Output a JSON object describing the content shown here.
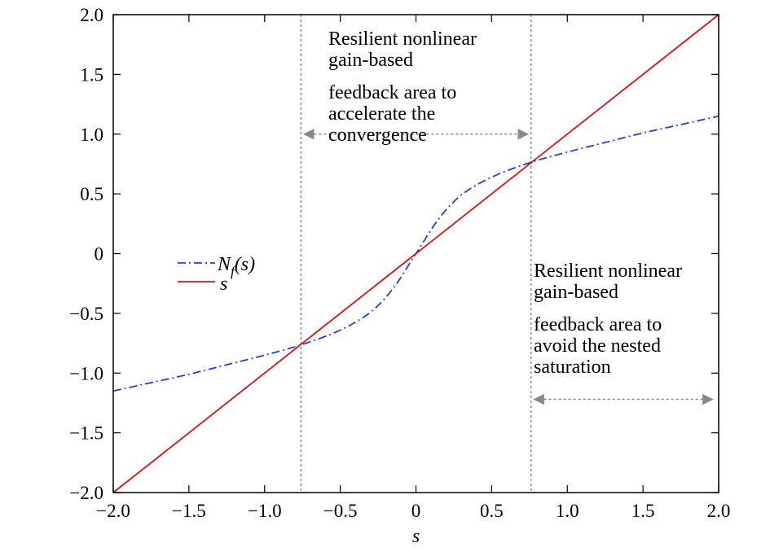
{
  "chart_data": {
    "type": "line",
    "xlabel": "s",
    "xlim": [
      -2.0,
      2.0
    ],
    "ylim": [
      -2.0,
      2.0
    ],
    "x_ticks": [
      "−2.0",
      "−1.5",
      "−1.0",
      "−0.5",
      "0",
      "0.5",
      "1.0",
      "1.5",
      "2.0"
    ],
    "y_ticks": [
      "2.0",
      "1.5",
      "1.0",
      "0.5",
      "0",
      "−0.5",
      "−1.0",
      "−1.5",
      "−2.0"
    ],
    "grid": false,
    "legend_position": "center-left",
    "series": [
      {
        "name_parts": {
          "main": "N",
          "sub": "f",
          "rest": "(s)"
        },
        "color": "#1f3fe0",
        "style": "dash-dot",
        "x": [
          -2.0,
          -1.75,
          -1.5,
          -1.25,
          -1.0,
          -0.75,
          -0.5,
          -0.3,
          -0.15,
          0.0,
          0.15,
          0.3,
          0.5,
          0.75,
          1.0,
          1.25,
          1.5,
          1.75,
          2.0
        ],
        "y": [
          -1.15,
          -1.08,
          -1.01,
          -0.93,
          -0.85,
          -0.76,
          -0.64,
          -0.49,
          -0.29,
          0.0,
          0.29,
          0.49,
          0.64,
          0.76,
          0.85,
          0.93,
          1.01,
          1.08,
          1.15
        ]
      },
      {
        "name": "s",
        "color": "#e01010",
        "style": "solid",
        "x": [
          -2.0,
          2.0
        ],
        "y": [
          -2.0,
          2.0
        ]
      }
    ],
    "vertical_lines": [
      {
        "x": -0.76,
        "color": "#888888",
        "style": "dotted"
      },
      {
        "x": 0.76,
        "color": "#888888",
        "style": "dotted"
      }
    ],
    "arrows": [
      {
        "x_from": -0.76,
        "x_to": 0.76,
        "y": 1.0,
        "color": "#888888"
      },
      {
        "x_from": 0.76,
        "x_to": 1.98,
        "y": -1.22,
        "color": "#888888"
      }
    ],
    "annotations": [
      {
        "lines": [
          "Resilient nonlinear",
          "gain-based",
          "feedback area to",
          "accelerate the",
          "convergence"
        ]
      },
      {
        "lines": [
          "Resilient nonlinear",
          "gain-based",
          "feedback area to",
          "avoid the nested",
          "saturation"
        ]
      }
    ]
  }
}
